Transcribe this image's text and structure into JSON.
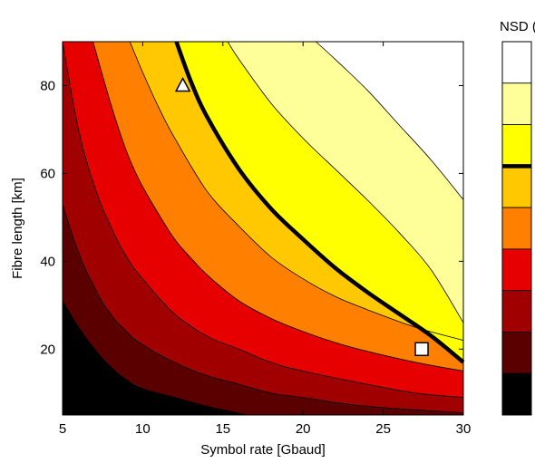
{
  "chart_data": {
    "type": "contour",
    "xlabel": "Symbol rate [Gbaud]",
    "ylabel": "Fibre length [km]",
    "xlim": [
      5,
      30
    ],
    "ylim": [
      5,
      90
    ],
    "xticks": [
      5,
      10,
      15,
      20,
      25,
      30
    ],
    "yticks": [
      20,
      40,
      60,
      80
    ],
    "grid": false,
    "colorbar": {
      "title": "NSD (%",
      "levels": 9,
      "colors": [
        "#000000",
        "#5a0000",
        "#a00000",
        "#e60000",
        "#ff8000",
        "#ffc800",
        "#ffff00",
        "#ffff99",
        "#ffffff"
      ],
      "highlight_boundary_between_levels": [
        5,
        6
      ]
    },
    "contour_lines": [
      {
        "level": 1,
        "bold": false,
        "points": [
          [
            5,
            31
          ],
          [
            6,
            25
          ],
          [
            7,
            20
          ],
          [
            8,
            16
          ],
          [
            9,
            13
          ],
          [
            10,
            11
          ],
          [
            12,
            9
          ],
          [
            14,
            7
          ],
          [
            16.5,
            5
          ]
        ]
      },
      {
        "level": 2,
        "bold": false,
        "points": [
          [
            5,
            53
          ],
          [
            6,
            42
          ],
          [
            7,
            34
          ],
          [
            8,
            28
          ],
          [
            9,
            24
          ],
          [
            10,
            21
          ],
          [
            12,
            17
          ],
          [
            14,
            14
          ],
          [
            16,
            12
          ],
          [
            18,
            10
          ],
          [
            20,
            9
          ],
          [
            24,
            7
          ],
          [
            30,
            5.5
          ]
        ]
      },
      {
        "level": 3,
        "bold": false,
        "points": [
          [
            5,
            90
          ],
          [
            6,
            70
          ],
          [
            7,
            57
          ],
          [
            8,
            48
          ],
          [
            9,
            41
          ],
          [
            10,
            36
          ],
          [
            12,
            28
          ],
          [
            14,
            23
          ],
          [
            16,
            20
          ],
          [
            18,
            17
          ],
          [
            20,
            15
          ],
          [
            24,
            12
          ],
          [
            27,
            10
          ],
          [
            30,
            9
          ]
        ]
      },
      {
        "level": 4,
        "bold": false,
        "points": [
          [
            6.9,
            90
          ],
          [
            8,
            76
          ],
          [
            9,
            65
          ],
          [
            10,
            57
          ],
          [
            12,
            45
          ],
          [
            14,
            37
          ],
          [
            16,
            31
          ],
          [
            18,
            27
          ],
          [
            20,
            24
          ],
          [
            22,
            21.5
          ],
          [
            24,
            19.5
          ],
          [
            27,
            17
          ],
          [
            30,
            15
          ]
        ]
      },
      {
        "level": 5,
        "bold": false,
        "points": [
          [
            9.2,
            90
          ],
          [
            10,
            83
          ],
          [
            11,
            75
          ],
          [
            12,
            68
          ],
          [
            14,
            56
          ],
          [
            16,
            48
          ],
          [
            18,
            41
          ],
          [
            20,
            36
          ],
          [
            22,
            32
          ],
          [
            24,
            29
          ],
          [
            27,
            25
          ],
          [
            30,
            22
          ]
        ]
      },
      {
        "level": 6,
        "bold": true,
        "points": [
          [
            12.1,
            90
          ],
          [
            13,
            81
          ],
          [
            14,
            73
          ],
          [
            16,
            61
          ],
          [
            18,
            52
          ],
          [
            20,
            45
          ],
          [
            22,
            38.5
          ],
          [
            24,
            33
          ],
          [
            26,
            28
          ],
          [
            28,
            23
          ],
          [
            30,
            17
          ]
        ]
      },
      {
        "level": 7,
        "bold": false,
        "points": [
          [
            15.3,
            90
          ],
          [
            16,
            86
          ],
          [
            18,
            76
          ],
          [
            20,
            68
          ],
          [
            22,
            61
          ],
          [
            24,
            54
          ],
          [
            26,
            46.5
          ],
          [
            28,
            38
          ],
          [
            30,
            26
          ]
        ]
      },
      {
        "level": 8,
        "bold": false,
        "points": [
          [
            20.8,
            90
          ],
          [
            22,
            86
          ],
          [
            24,
            79
          ],
          [
            26,
            71
          ],
          [
            28,
            63
          ],
          [
            30,
            54
          ]
        ]
      }
    ],
    "markers": [
      {
        "shape": "triangle",
        "x": 12.5,
        "y": 80
      },
      {
        "shape": "square",
        "x": 27.4,
        "y": 20
      }
    ]
  }
}
